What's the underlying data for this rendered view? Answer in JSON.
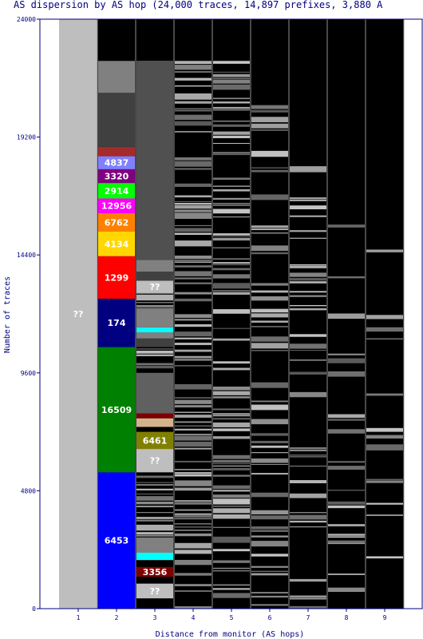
{
  "chart_data": {
    "type": "bar",
    "title": "AS dispersion by AS hop (24,000 traces, 14,897 prefixes, 3,880 A",
    "xlabel": "Distance from monitor (AS hops)",
    "ylabel": "Number of traces",
    "ylim": [
      0,
      24000
    ],
    "yticks": [
      "0",
      "4800",
      "9600",
      "14400",
      "19200",
      "24000"
    ],
    "ytick_values": [
      0,
      4800,
      9600,
      14400,
      19200,
      24000
    ],
    "categories": [
      "1",
      "2",
      "3",
      "4",
      "5",
      "6",
      "7",
      "8",
      "9"
    ],
    "colors": {
      "background": "#000000",
      "border": "#000080",
      "hop1": "#bebebe",
      "unknown": "#bebebe",
      "grey": "#888888",
      "line_white": "#cccccc"
    },
    "columns": [
      {
        "hop": "1",
        "segments": [
          {
            "from": 0,
            "to": 24000,
            "color": "#bebebe",
            "label": "??"
          }
        ]
      },
      {
        "hop": "2",
        "segments": [
          {
            "from": 0,
            "to": 5550,
            "color": "#0000ff",
            "label": "6453"
          },
          {
            "from": 5550,
            "to": 10650,
            "color": "#008000",
            "label": "16509"
          },
          {
            "from": 10650,
            "to": 12620,
            "color": "#000080",
            "label": "174"
          },
          {
            "from": 12620,
            "to": 14350,
            "color": "#ff0000",
            "label": "1299"
          },
          {
            "from": 14350,
            "to": 15350,
            "color": "#ffd700",
            "label": "4134"
          },
          {
            "from": 15350,
            "to": 16100,
            "color": "#ff8000",
            "label": "6762"
          },
          {
            "from": 16100,
            "to": 16700,
            "color": "#ff00ff",
            "label": "12956"
          },
          {
            "from": 16700,
            "to": 17330,
            "color": "#00ff00",
            "label": "2914"
          },
          {
            "from": 17330,
            "to": 17890,
            "color": "#800080",
            "label": "3320"
          },
          {
            "from": 17890,
            "to": 18420,
            "color": "#8080ff",
            "label": "4837"
          },
          {
            "from": 18420,
            "to": 18800,
            "color": "#a52a2a",
            "label": ""
          },
          {
            "from": 18800,
            "to": 21000,
            "color": "#404040",
            "label": ""
          },
          {
            "from": 21000,
            "to": 22300,
            "color": "#808080",
            "label": ""
          }
        ]
      },
      {
        "hop": "3",
        "segments": [
          {
            "from": 0,
            "to": 420,
            "color": "#000000",
            "label": ""
          },
          {
            "from": 420,
            "to": 1020,
            "color": "#bebebe",
            "label": "??"
          },
          {
            "from": 1020,
            "to": 1300,
            "color": "#000000",
            "label": ""
          },
          {
            "from": 1300,
            "to": 1700,
            "color": "#800000",
            "label": "3356"
          },
          {
            "from": 1700,
            "to": 1980,
            "color": "#000000",
            "label": ""
          },
          {
            "from": 1980,
            "to": 2280,
            "color": "#00ffff",
            "label": ""
          },
          {
            "from": 2280,
            "to": 2900,
            "color": "#808080",
            "label": ""
          },
          {
            "from": 5550,
            "to": 6500,
            "color": "#bebebe",
            "label": "??"
          },
          {
            "from": 6500,
            "to": 7200,
            "color": "#808000",
            "label": "6461"
          },
          {
            "from": 7200,
            "to": 7400,
            "color": "#000000",
            "label": ""
          },
          {
            "from": 7400,
            "to": 7750,
            "color": "#d2b48c",
            "label": ""
          },
          {
            "from": 7750,
            "to": 7950,
            "color": "#800000",
            "label": ""
          },
          {
            "from": 7950,
            "to": 9600,
            "color": "#606060",
            "label": ""
          },
          {
            "from": 10650,
            "to": 11000,
            "color": "#404040",
            "label": ""
          },
          {
            "from": 11000,
            "to": 11250,
            "color": "#808080",
            "label": ""
          },
          {
            "from": 11250,
            "to": 11450,
            "color": "#00ffff",
            "label": ""
          },
          {
            "from": 11450,
            "to": 12200,
            "color": "#808080",
            "label": ""
          },
          {
            "from": 12850,
            "to": 13350,
            "color": "#bebebe",
            "label": "??"
          },
          {
            "from": 13350,
            "to": 13720,
            "color": "#404040",
            "label": ""
          },
          {
            "from": 13720,
            "to": 14200,
            "color": "#808080",
            "label": ""
          },
          {
            "from": 14200,
            "to": 22300,
            "color": "#505050",
            "label": ""
          }
        ]
      }
    ]
  }
}
